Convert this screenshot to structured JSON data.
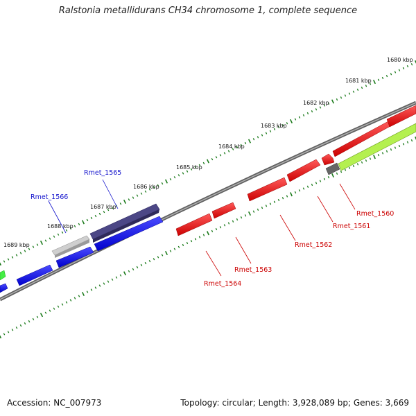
{
  "title": "Ralstonia metallidurans CH34 chromosome 1, complete sequence",
  "footer": {
    "accession": "Accession: NC_007973",
    "summary": "Topology: circular; Length: 3,928,089 bp; Genes: 3,669"
  },
  "colors": {
    "backbone": "#7a7a7a",
    "tick": "#1a7a1a",
    "forward_gene": "#0a0af0",
    "reverse_gene": "#ee0000",
    "gray_gene": "#b8b8b8",
    "dark_gene": "#4a4580",
    "green_gene": "#a8ee40",
    "label_blue": "#1010cc",
    "label_red": "#cc0000"
  },
  "kbp_labels": [
    "1680 kbp",
    "1681 kbp",
    "1682 kbp",
    "1683 kbp",
    "1684 kbp",
    "1685 kbp",
    "1686 kbp",
    "1687 kbp",
    "1688 kbp",
    "1689 kbp"
  ],
  "gene_labels": {
    "Rmet_1565": "Rmet_1565",
    "Rmet_1566": "Rmet_1566",
    "Rmet_1560": "Rmet_1560",
    "Rmet_1561": "Rmet_1561",
    "Rmet_1562": "Rmet_1562",
    "Rmet_1563": "Rmet_1563",
    "Rmet_1564": "Rmet_1564"
  }
}
